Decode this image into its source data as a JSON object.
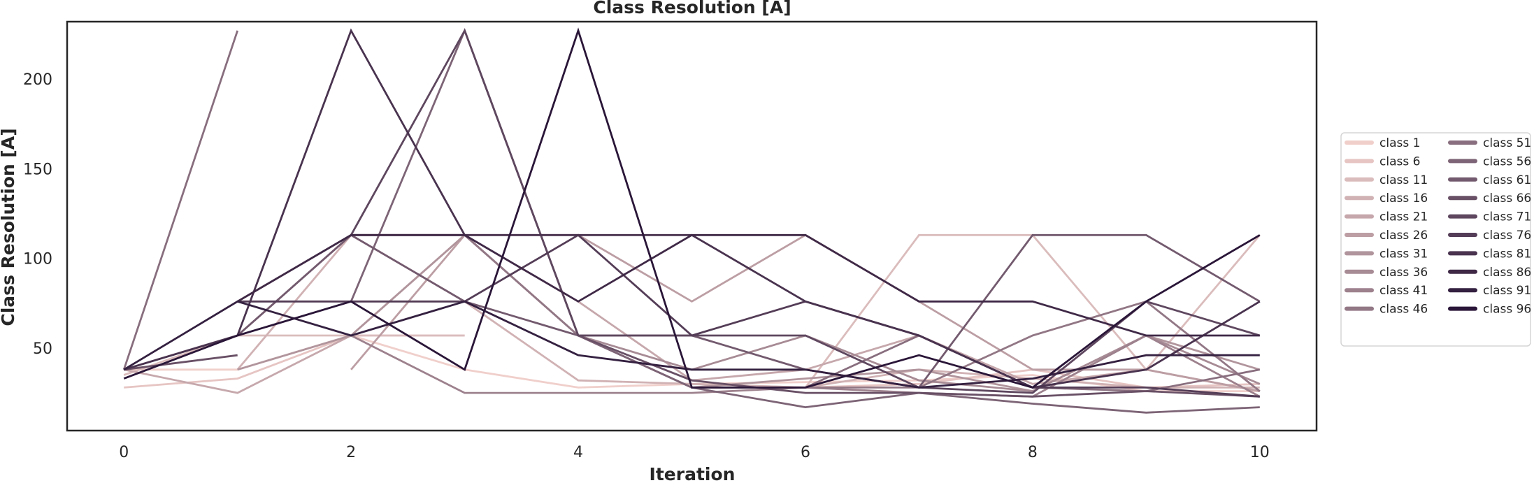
{
  "chart_data": {
    "type": "line",
    "title": "Class Resolution [A]",
    "xlabel": "Iteration",
    "ylabel": "Class Resolution [A]",
    "xlim": [
      -0.5,
      10.5
    ],
    "ylim": [
      4,
      232
    ],
    "xticks": [
      0,
      2,
      4,
      6,
      8,
      10
    ],
    "yticks": [
      50,
      100,
      150,
      200
    ],
    "grid": false,
    "legend_position": "right",
    "palette_light": "#f0cfcb",
    "palette_dark": "#2a1638",
    "x": [
      0,
      1,
      2,
      3,
      4,
      5,
      6,
      7,
      8,
      9,
      10
    ],
    "series": [
      {
        "name": "class 1",
        "values": [
          38,
          38,
          57,
          38,
          28,
          30,
          31,
          32,
          35,
          26,
          26
        ]
      },
      {
        "name": "class 6",
        "values": [
          28,
          33,
          57,
          57,
          null,
          null,
          28,
          30,
          38,
          28,
          30
        ]
      },
      {
        "name": "class 11",
        "values": [
          35,
          57,
          57,
          57,
          null,
          30,
          28,
          113,
          113,
          38,
          113
        ]
      },
      {
        "name": "class 16",
        "values": [
          null,
          38,
          113,
          76,
          32,
          30,
          28,
          38,
          33,
          28,
          28
        ]
      },
      {
        "name": "class 21",
        "values": [
          38,
          25,
          57,
          113,
          76,
          32,
          38,
          57,
          30,
          38,
          26
        ]
      },
      {
        "name": "class 26",
        "values": [
          null,
          null,
          38,
          113,
          113,
          76,
          113,
          76,
          38,
          38,
          26
        ]
      },
      {
        "name": "class 31",
        "values": [
          null,
          38,
          57,
          113,
          57,
          28,
          33,
          38,
          26,
          57,
          38
        ]
      },
      {
        "name": "class 36",
        "values": [
          38,
          57,
          113,
          113,
          57,
          38,
          57,
          32,
          26,
          57,
          30
        ]
      },
      {
        "name": "class 41",
        "values": [
          null,
          null,
          57,
          25,
          25,
          25,
          28,
          25,
          23,
          57,
          23
        ]
      },
      {
        "name": "class 46",
        "values": [
          null,
          76,
          113,
          113,
          57,
          28,
          28,
          28,
          57,
          76,
          26
        ]
      },
      {
        "name": "class 51",
        "values": [
          38,
          227,
          null,
          null,
          null,
          28,
          28,
          57,
          28,
          26,
          38
        ]
      },
      {
        "name": "class 56",
        "values": [
          null,
          null,
          76,
          227,
          57,
          28,
          17,
          25,
          19,
          14,
          17
        ]
      },
      {
        "name": "class 61",
        "values": [
          null,
          57,
          113,
          76,
          57,
          57,
          38,
          28,
          113,
          113,
          76
        ]
      },
      {
        "name": "class 66",
        "values": [
          38,
          46,
          null,
          null,
          57,
          32,
          25,
          25,
          23,
          26,
          23
        ]
      },
      {
        "name": "class 71",
        "values": [
          null,
          null,
          113,
          227,
          57,
          57,
          57,
          28,
          25,
          76,
          57
        ]
      },
      {
        "name": "class 76",
        "values": [
          null,
          76,
          76,
          76,
          113,
          57,
          76,
          57,
          28,
          28,
          23
        ]
      },
      {
        "name": "class 81",
        "values": [
          38,
          57,
          227,
          113,
          113,
          113,
          76,
          57,
          28,
          38,
          76
        ]
      },
      {
        "name": "class 86",
        "values": [
          null,
          76,
          113,
          113,
          76,
          113,
          113,
          76,
          76,
          57,
          57
        ]
      },
      {
        "name": "class 91",
        "values": [
          38,
          76,
          57,
          76,
          46,
          38,
          38,
          28,
          33,
          46,
          46
        ]
      },
      {
        "name": "class 96",
        "values": [
          33,
          57,
          76,
          38,
          227,
          28,
          28,
          46,
          28,
          76,
          113
        ]
      }
    ]
  }
}
